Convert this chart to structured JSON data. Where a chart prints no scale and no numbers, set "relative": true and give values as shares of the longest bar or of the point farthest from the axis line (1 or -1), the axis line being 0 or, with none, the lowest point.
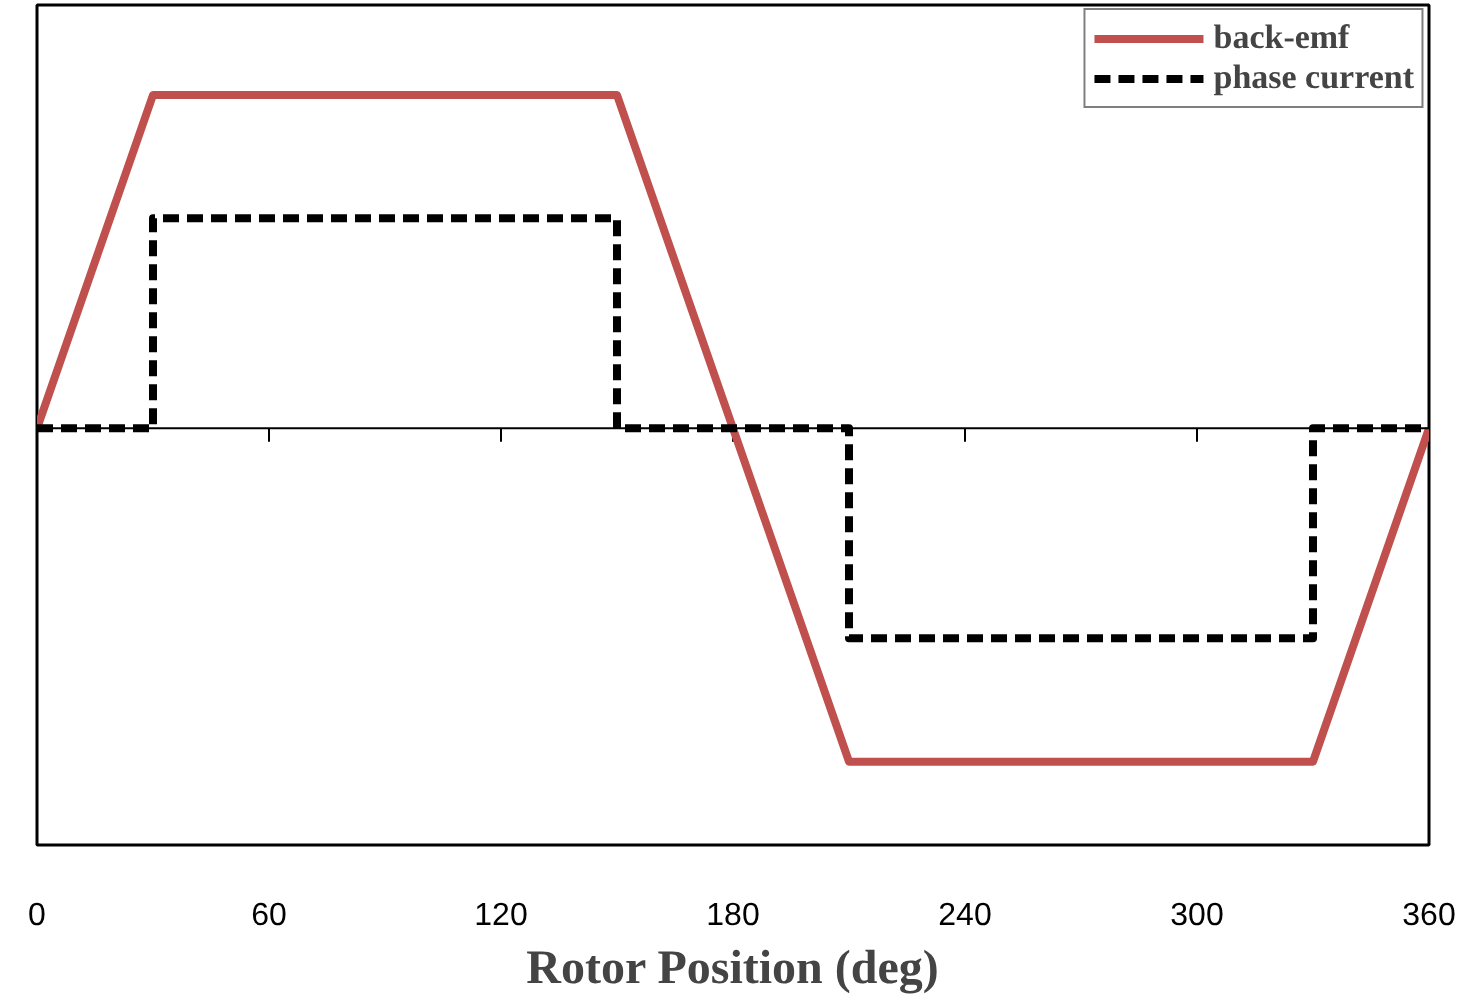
{
  "chart_data": {
    "type": "line",
    "relative": true,
    "xlabel": "Rotor Position (deg)",
    "xlim": [
      0,
      360
    ],
    "xticks": [
      0,
      60,
      120,
      180,
      240,
      300,
      360
    ],
    "grid": false,
    "legend": "top right",
    "marker": "none",
    "series": [
      {
        "name": "back-emf",
        "color": "#c0504d",
        "line_style": "solid",
        "x": [
          0,
          30,
          150,
          210,
          330,
          360
        ],
        "values": [
          0,
          1,
          1,
          -1,
          -1,
          0
        ]
      },
      {
        "name": "phase current",
        "color": "#000000",
        "line_style": "dashed",
        "x": [
          0,
          30,
          30,
          150,
          150,
          210,
          210,
          330,
          330,
          360
        ],
        "values": [
          0,
          0,
          0.63,
          0.63,
          0,
          0,
          -0.63,
          -0.63,
          0,
          0
        ]
      }
    ]
  }
}
